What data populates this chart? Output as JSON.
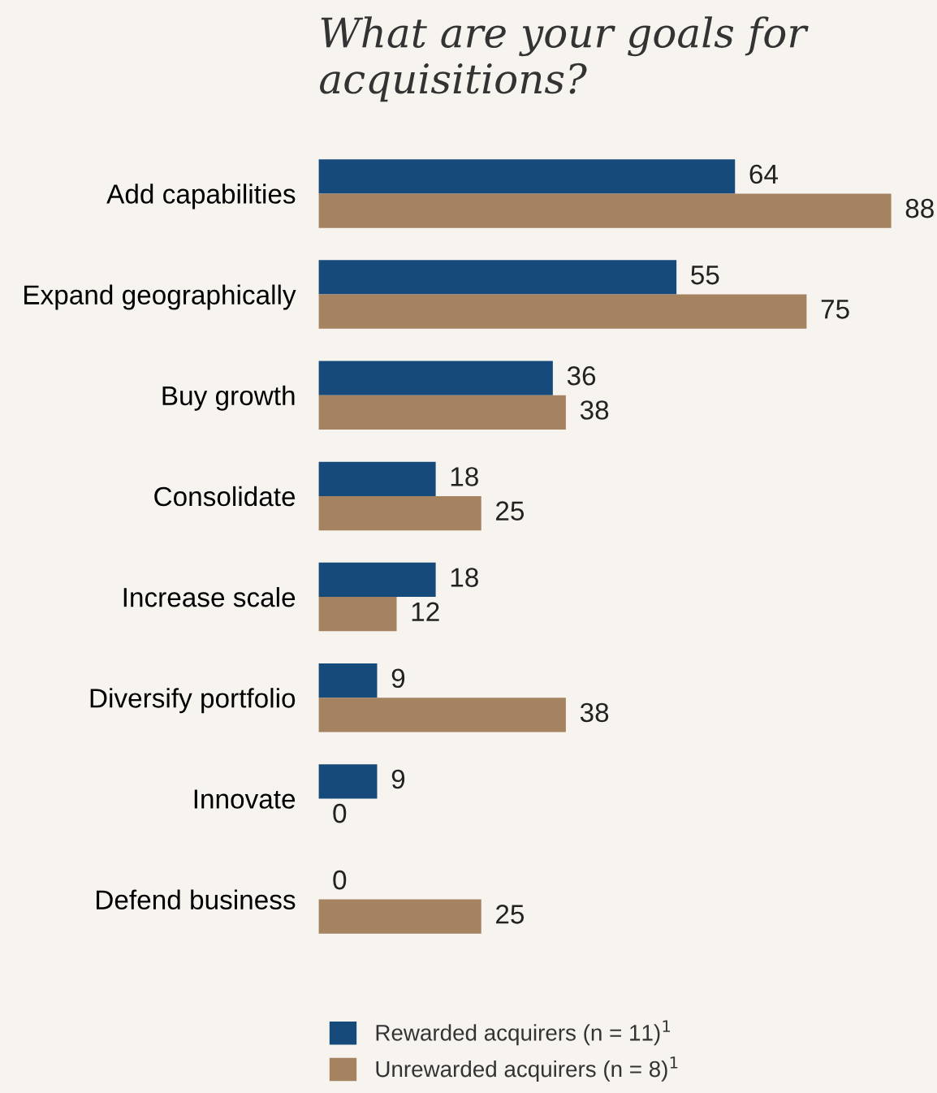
{
  "chart_data": {
    "type": "bar",
    "orientation": "horizontal",
    "title": "What are your goals for acquisitions?",
    "categories": [
      "Add capabilities",
      "Expand geographically",
      "Buy growth",
      "Consolidate",
      "Increase scale",
      "Diversify portfolio",
      "Innovate",
      "Defend business"
    ],
    "series": [
      {
        "name": "Rewarded acquirers (n = 11)$^{1}$",
        "color": "#164a7a",
        "values": [
          64,
          55,
          36,
          18,
          18,
          9,
          9,
          0
        ]
      },
      {
        "name": "Unrewarded acquirers (n = 8)$^{1}$",
        "color": "#a58260",
        "values": [
          88,
          75,
          38,
          25,
          12,
          38,
          0,
          25
        ]
      }
    ],
    "data_labels": true,
    "legend": "bottom",
    "grid": false,
    "tick_labels": "y"
  }
}
